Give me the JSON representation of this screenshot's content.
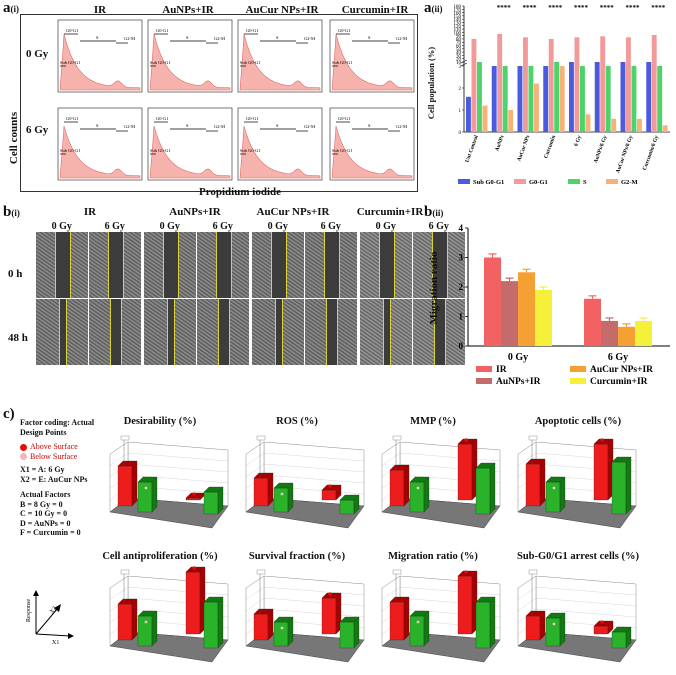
{
  "panel_a1": {
    "label": "a",
    "sub": "(i)",
    "columns": [
      "IR",
      "AuNPs+IR",
      "AuCur NPs+IR",
      "Curcumin+IR"
    ],
    "rows": [
      "0 Gy",
      "6 Gy"
    ],
    "ylabel": "Cell counts",
    "xlabel": "Propidium iodide",
    "gates": {
      "g01": "G0-G1",
      "s": "S",
      "g2m": "G2-M",
      "subg": "Sub G0-G1"
    }
  },
  "panel_a2": {
    "label": "a",
    "sub": "(ii)",
    "ylabel": "Cell population (%)",
    "significance": "****",
    "colors": {
      "sub": "#4a5be0",
      "g01": "#f29a9a",
      "s": "#4cd36a",
      "g2m": "#f7b27a"
    },
    "legend": [
      "Sub G0-G1",
      "G0-G1",
      "S",
      "G2-M"
    ]
  },
  "panel_b1": {
    "label": "b",
    "sub": "(i)",
    "groups": [
      "IR",
      "AuNPs+IR",
      "AuCur NPs+IR",
      "Curcumin+IR"
    ],
    "doses": [
      "0 Gy",
      "6 Gy"
    ],
    "times": [
      "0 h",
      "48 h"
    ]
  },
  "panel_b2": {
    "label": "b",
    "sub": "(ii)",
    "legend": [
      "IR",
      "AuNPs+IR",
      "AuCur NPs+IR",
      "Curcumin+IR"
    ],
    "colors": [
      "#f26262",
      "#c46b6b",
      "#f5a032",
      "#f5f03a"
    ]
  },
  "panel_c": {
    "label": "c)",
    "factor_title": "Factor coding: Actual",
    "factor_title2": "Design Points",
    "above": "Above Surface",
    "below": "Below Surface",
    "x1": "X1 = A: 6 Gy",
    "x2": "X2 = E: AuCur NPs",
    "actual": "Actual Factors",
    "f1": "B = 8 Gy = 0",
    "f2": "C = 10 Gy = 0",
    "f3": "D = AuNPs = 0",
    "f4": "F = Curcumin = 0",
    "axis_x1": "X1",
    "axis_x2": "X2",
    "axis_resp": "Response",
    "titles": [
      "Desirability (%)",
      "ROS (%)",
      "MMP (%)",
      "Apoptotic cells (%)",
      "Cell antiproliferation (%)",
      "Survival fraction (%)",
      "Migration ratio (%)",
      "Sub-G0/G1 arrest cells (%)"
    ]
  },
  "chart_data": [
    {
      "type": "bar",
      "title": "Cell population (%)",
      "ylabel": "Cell population (%)",
      "categories": [
        "Unt Control",
        "AuNPs",
        "AuCur NPs",
        "Curcumin",
        "6 Gy",
        "AuNPs/6 Gy",
        "AuCur NPs/6 Gy",
        "Curcumin/6 Gy"
      ],
      "yticks": [
        "0",
        "1",
        "2",
        "3",
        "10",
        "20",
        "30",
        "40",
        "50",
        "60",
        "70",
        "80",
        "90",
        "100",
        "110",
        "120",
        "130",
        "140",
        "150",
        "160",
        "170",
        "180"
      ],
      "series": [
        {
          "name": "Sub G0-G1",
          "values": [
            1.6,
            3.0,
            3.0,
            3.0,
            3.2,
            3.1,
            3.1,
            3.1
          ]
        },
        {
          "name": "G0-G1",
          "values": [
            80,
            95,
            85,
            80,
            85,
            88,
            85,
            92
          ]
        },
        {
          "name": "S",
          "values": [
            3.2,
            3.0,
            3.0,
            3.1,
            3.0,
            3.0,
            3.0,
            3.0
          ]
        },
        {
          "name": "G2-M",
          "values": [
            1.2,
            1.0,
            2.2,
            3.0,
            0.8,
            0.6,
            0.6,
            0.3
          ]
        }
      ],
      "ylim": [
        0,
        180
      ]
    },
    {
      "type": "bar",
      "title": "Migration ratio",
      "ylabel": "Migration ratio",
      "categories": [
        "0 Gy",
        "6 Gy"
      ],
      "series": [
        {
          "name": "IR",
          "values": [
            3.0,
            1.6
          ],
          "errors": [
            0.12,
            0.1
          ]
        },
        {
          "name": "AuNPs+IR",
          "values": [
            2.2,
            0.85
          ],
          "errors": [
            0.1,
            0.1
          ]
        },
        {
          "name": "AuCur NPs+IR",
          "values": [
            2.5,
            0.65
          ],
          "errors": [
            0.1,
            0.1
          ]
        },
        {
          "name": "Curcumin+IR",
          "values": [
            1.9,
            0.85
          ],
          "errors": [
            0.1,
            0.1
          ]
        }
      ],
      "yticks": [
        "0",
        "1",
        "2",
        "3",
        "4"
      ],
      "ylim": [
        0,
        4
      ]
    }
  ]
}
